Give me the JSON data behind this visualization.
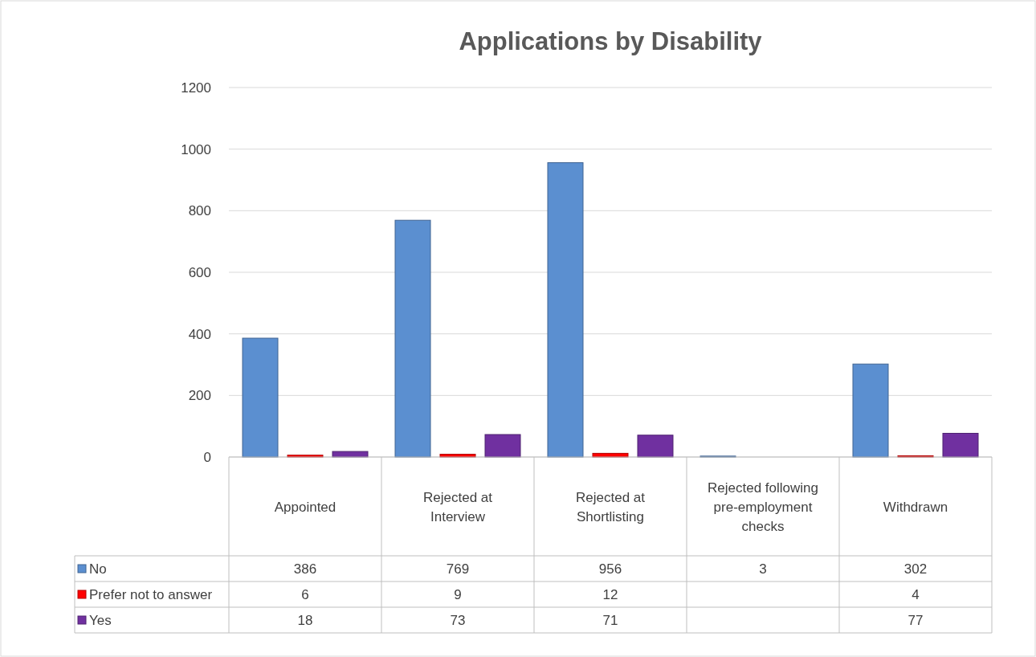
{
  "chart_data": {
    "type": "bar",
    "title": "Applications by Disability",
    "categories": [
      "Appointed",
      "Rejected at Interview",
      "Rejected at Shortlisting",
      "Rejected following pre-employment checks",
      "Withdrawn"
    ],
    "series": [
      {
        "name": "No",
        "color": "#5b8fd0",
        "values": [
          386,
          769,
          956,
          3,
          302
        ]
      },
      {
        "name": "Prefer not to answer",
        "color": "#ff0000",
        "values": [
          6,
          9,
          12,
          null,
          4
        ]
      },
      {
        "name": "Yes",
        "color": "#7030a0",
        "values": [
          18,
          73,
          71,
          null,
          77
        ]
      }
    ],
    "ylim": [
      0,
      1200
    ],
    "yticks": [
      0,
      200,
      400,
      600,
      800,
      1000,
      1200
    ],
    "grid": "y",
    "legend": "bottom",
    "data_labels": true
  }
}
